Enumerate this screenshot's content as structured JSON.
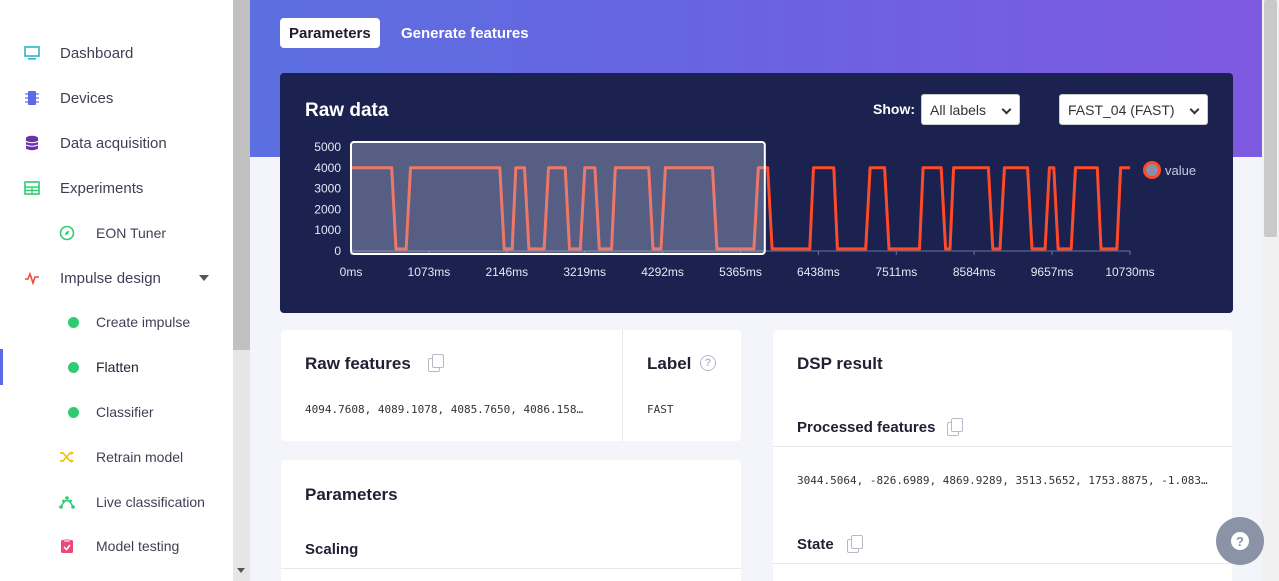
{
  "sidebar": {
    "items": [
      {
        "label": "Dashboard",
        "icon": "monitor-icon",
        "color": "#2bb5c9"
      },
      {
        "label": "Devices",
        "icon": "chip-icon",
        "color": "#5a6ce4"
      },
      {
        "label": "Data acquisition",
        "icon": "database-icon",
        "color": "#6b2fa8"
      },
      {
        "label": "Experiments",
        "icon": "grid-icon",
        "color": "#2ecc71"
      },
      {
        "label": "EON Tuner",
        "icon": "compass-icon",
        "color": "#2ecc71"
      },
      {
        "label": "Impulse design",
        "icon": "pulse-icon",
        "color": "#e74c3c"
      },
      {
        "label": "Create impulse",
        "icon": "dot-icon",
        "color": "#2ecc71"
      },
      {
        "label": "Flatten",
        "icon": "dot-icon",
        "color": "#2ecc71"
      },
      {
        "label": "Classifier",
        "icon": "dot-icon",
        "color": "#2ecc71"
      },
      {
        "label": "Retrain model",
        "icon": "shuffle-icon",
        "color": "#f1c40f"
      },
      {
        "label": "Live classification",
        "icon": "nodes-icon",
        "color": "#2ecc71"
      },
      {
        "label": "Model testing",
        "icon": "clipboard-check-icon",
        "color": "#e84a7a"
      }
    ]
  },
  "tabs": {
    "parameters": "Parameters",
    "generate_features": "Generate features"
  },
  "raw_data": {
    "title": "Raw data",
    "show_label": "Show:",
    "label_filter": "All labels",
    "sample": "FAST_04 (FAST)"
  },
  "chart_data": {
    "type": "line",
    "y_ticks": [
      "5000",
      "4000",
      "3000",
      "2000",
      "1000",
      "0"
    ],
    "x_ticks": [
      "0ms",
      "1073ms",
      "2146ms",
      "3219ms",
      "4292ms",
      "5365ms",
      "6438ms",
      "7511ms",
      "8584ms",
      "9657ms",
      "10730ms"
    ],
    "ylim": [
      0,
      5000
    ],
    "xlim": [
      0,
      10730
    ],
    "series": [
      {
        "name": "value",
        "color": "#ff4a2a",
        "x": [
          0,
          560,
          620,
          760,
          820,
          2050,
          2110,
          2220,
          2270,
          2390,
          2450,
          2660,
          2720,
          2950,
          3010,
          3160,
          3220,
          3360,
          3420,
          3590,
          3640,
          4100,
          4160,
          4270,
          4330,
          4980,
          5040,
          5550,
          5610,
          5740,
          5800,
          6320,
          6370,
          6650,
          6700,
          7090,
          7150,
          7350,
          7410,
          7830,
          7880,
          8130,
          8190,
          8250,
          8300,
          8780,
          8840,
          8940,
          9000,
          9320,
          9380,
          9560,
          9620,
          9680,
          9740,
          9920,
          9980,
          10280,
          10330,
          10550,
          10600,
          10730
        ],
        "y": [
          4000,
          4000,
          100,
          100,
          4000,
          4000,
          100,
          100,
          4000,
          4000,
          100,
          100,
          4000,
          4000,
          100,
          100,
          4000,
          4000,
          100,
          100,
          4000,
          4000,
          100,
          100,
          4000,
          4000,
          100,
          100,
          4000,
          4000,
          100,
          100,
          4000,
          4000,
          100,
          100,
          4000,
          4000,
          100,
          100,
          4000,
          4000,
          100,
          100,
          4000,
          4000,
          100,
          100,
          4000,
          4000,
          100,
          100,
          4000,
          4000,
          100,
          100,
          4000,
          4000,
          100,
          100,
          4000,
          4000
        ]
      }
    ],
    "selection_window": {
      "x_start": 0,
      "x_end": 5700
    },
    "legend_position": "right"
  },
  "raw_features": {
    "title": "Raw features",
    "value": "4094.7608, 4089.1078, 4085.7650, 4086.158…"
  },
  "label_panel": {
    "title": "Label",
    "value": "FAST"
  },
  "parameters_card": {
    "title": "Parameters",
    "scaling": "Scaling"
  },
  "dsp_result": {
    "title": "DSP result",
    "processed_title": "Processed features",
    "processed_value": "3044.5064, -826.6989, 4869.9289, 3513.5652, 1753.8875, -1.083…",
    "state_title": "State"
  },
  "help": {
    "icon": "question-icon"
  }
}
